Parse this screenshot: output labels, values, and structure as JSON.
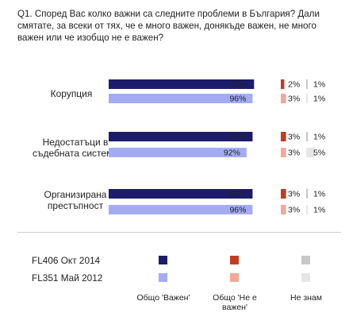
{
  "question": "Q1. Според Вас колко важни са следните проблеми в България? Дали смятате, за всеки от тях, че е много важен, донякъде важен, не много важен или че изобщо не е важен?",
  "chart_data": {
    "type": "bar",
    "orientation": "horizontal-stacked-panels",
    "categories": [
      "Корупция",
      "Недостатъци в съдебната система",
      "Организирана престъпност"
    ],
    "category_lines": [
      [
        "Корупция"
      ],
      [
        "Недостатъци в",
        "съдебната система"
      ],
      [
        "Организирана",
        "престъпност"
      ]
    ],
    "measures": [
      "Общо 'Важен'",
      "Общо 'Не е важен'",
      "Не знам"
    ],
    "series": [
      {
        "name": "FL406 Окт 2014",
        "important": [
          97,
          96,
          96
        ],
        "important_labels": [
          "97%",
          "96%",
          "96%"
        ],
        "not_important": [
          2,
          3,
          3
        ],
        "not_important_labels": [
          "2%",
          "3%",
          "3%"
        ],
        "dont_know": [
          1,
          1,
          1
        ],
        "dont_know_labels": [
          "1%",
          "1%",
          "1%"
        ]
      },
      {
        "name": "FL351 Май 2012",
        "important": [
          96,
          92,
          96
        ],
        "important_labels": [
          "96%",
          "92%",
          "96%"
        ],
        "not_important": [
          3,
          3,
          3
        ],
        "not_important_labels": [
          "3%",
          "3%",
          "3%"
        ],
        "dont_know": [
          1,
          5,
          1
        ],
        "dont_know_labels": [
          "1%",
          "5%",
          "1%"
        ]
      }
    ],
    "colors": {
      "important": [
        "#1c1c6b",
        "#a3acf3"
      ],
      "not_important": [
        "#c23b22",
        "#f5a898"
      ],
      "dont_know": [
        "#c8c8c8",
        "#e6e6e6"
      ]
    },
    "xlim": [
      0,
      100
    ],
    "legend_position": "bottom"
  },
  "legend": {
    "series": [
      "FL406 Окт 2014",
      "FL351 Май 2012"
    ],
    "columns": [
      [
        "Общо 'Важен'"
      ],
      [
        "Общо 'Не е",
        "важен'"
      ],
      [
        "Не знам"
      ]
    ]
  }
}
